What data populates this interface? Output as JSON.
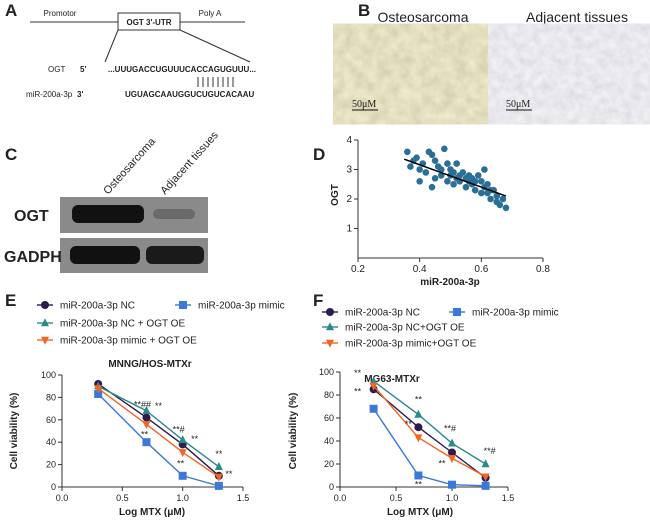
{
  "panels": [
    "A",
    "B",
    "C",
    "D",
    "E",
    "F"
  ],
  "diagram": {
    "promoter": "Promotor",
    "utr": "OGT 3'-UTR",
    "polya": "Poly A",
    "ogt_label": "OGT",
    "ogt_end": "5'",
    "ogt_seq": "...UUUGACCUGUUUCACCAGUGUUU...",
    "mir_label": "miR-200a-3p",
    "mir_end": "3'",
    "mir_seq": "UGUAGCAAUGGUCUGUCACAAU"
  },
  "ihc": {
    "left_title": "Osteosarcoma",
    "right_title": "Adjacent tissues",
    "left_scale": "50μM",
    "right_scale": "50μM"
  },
  "blot": {
    "lanes": [
      "Osteosarcoma",
      "Adjacent tissues"
    ],
    "rows": [
      "OGT",
      "GADPH"
    ]
  },
  "chart_data": [
    {
      "type": "scatter",
      "xlabel": "miR-200a-3p",
      "ylabel": "OGT",
      "xlim": [
        0.2,
        0.8
      ],
      "ylim": [
        0,
        4
      ],
      "xticks": [
        0.2,
        0.4,
        0.6,
        0.8
      ],
      "yticks": [
        1,
        2,
        3,
        4
      ],
      "color": "#2a6f97",
      "x": [
        0.36,
        0.38,
        0.37,
        0.39,
        0.4,
        0.41,
        0.42,
        0.43,
        0.44,
        0.45,
        0.45,
        0.46,
        0.47,
        0.47,
        0.48,
        0.49,
        0.49,
        0.5,
        0.5,
        0.51,
        0.51,
        0.52,
        0.52,
        0.53,
        0.53,
        0.54,
        0.55,
        0.55,
        0.56,
        0.56,
        0.57,
        0.57,
        0.58,
        0.58,
        0.59,
        0.6,
        0.6,
        0.61,
        0.61,
        0.62,
        0.62,
        0.63,
        0.63,
        0.64,
        0.65,
        0.65,
        0.66,
        0.67,
        0.68,
        0.4,
        0.44
      ],
      "values": [
        3.6,
        3.3,
        3.1,
        3.4,
        3.0,
        3.2,
        2.9,
        3.6,
        3.5,
        3.3,
        2.7,
        3.1,
        3.0,
        2.8,
        3.7,
        3.2,
        2.6,
        3.0,
        2.8,
        2.9,
        2.5,
        2.7,
        3.2,
        2.8,
        2.6,
        2.9,
        2.7,
        2.4,
        2.6,
        2.8,
        2.5,
        2.7,
        2.6,
        2.3,
        2.8,
        2.6,
        2.2,
        3.0,
        2.4,
        2.2,
        2.5,
        2.0,
        2.3,
        2.3,
        1.9,
        2.1,
        1.8,
        2.0,
        1.7,
        2.6,
        2.4
      ],
      "fit": {
        "x": [
          0.35,
          0.68
        ],
        "values": [
          3.35,
          2.1
        ]
      }
    },
    {
      "type": "line",
      "title": "MNNG/HOS-MTXr",
      "xlabel": "Log MTX (μM)",
      "ylabel": "Cell viability (%)",
      "xlim": [
        0,
        1.5
      ],
      "ylim": [
        0,
        100
      ],
      "xticks": [
        {
          "value": 0,
          "label": "0.0"
        },
        0.5,
        {
          "value": 1,
          "label": "1.0"
        },
        1.5
      ],
      "yticks": [
        0,
        20,
        40,
        60,
        80,
        100
      ],
      "x": [
        0.3,
        0.7,
        1.0,
        1.3
      ],
      "series": [
        {
          "name": "miR-200a-3p NC",
          "color": "#2d1b4e",
          "marker": "circle",
          "values": [
            92,
            62,
            38,
            10
          ]
        },
        {
          "name": "miR-200a-3p mimic",
          "color": "#3c78d8",
          "marker": "square",
          "values": [
            83,
            40,
            10,
            1
          ]
        },
        {
          "name": "miR-200a-3p NC + OGT OE",
          "color": "#2a8a8a",
          "marker": "triangle",
          "values": [
            90,
            68,
            42,
            18
          ]
        },
        {
          "name": "miR-200a-3p mimic + OGT OE",
          "color": "#f26522",
          "marker": "triangle-down",
          "values": [
            88,
            56,
            31,
            9
          ]
        }
      ],
      "annotations": [
        "**##",
        "**",
        "**",
        "**#",
        "**",
        "**",
        "**",
        "**"
      ]
    },
    {
      "type": "line",
      "title": "MG63-MTXr",
      "xlabel": "Log MTX (μM)",
      "ylabel": "Cell viability (%)",
      "xlim": [
        0,
        1.5
      ],
      "ylim": [
        0,
        100
      ],
      "xticks": [
        {
          "value": 0,
          "label": "0.0"
        },
        0.5,
        {
          "value": 1,
          "label": "1.0"
        },
        1.5
      ],
      "yticks": [
        0,
        20,
        40,
        60,
        80,
        100
      ],
      "x": [
        0.3,
        0.7,
        1.0,
        1.3
      ],
      "series": [
        {
          "name": "miR-200a-3p NC",
          "color": "#2d1b4e",
          "marker": "circle",
          "values": [
            85,
            52,
            30,
            8
          ]
        },
        {
          "name": "miR-200a-3p mimic",
          "color": "#3c78d8",
          "marker": "square",
          "values": [
            68,
            10,
            2,
            1
          ]
        },
        {
          "name": "miR-200a-3p NC+OGT OE",
          "color": "#2a8a8a",
          "marker": "triangle",
          "values": [
            92,
            63,
            38,
            20
          ]
        },
        {
          "name": "miR-200a-3p mimic+OGT OE",
          "color": "#f26522",
          "marker": "triangle-down",
          "values": [
            88,
            43,
            25,
            9
          ]
        }
      ],
      "annotations": [
        "**",
        "**",
        "**",
        "**",
        "**#",
        "**",
        "**",
        "**#"
      ]
    }
  ]
}
